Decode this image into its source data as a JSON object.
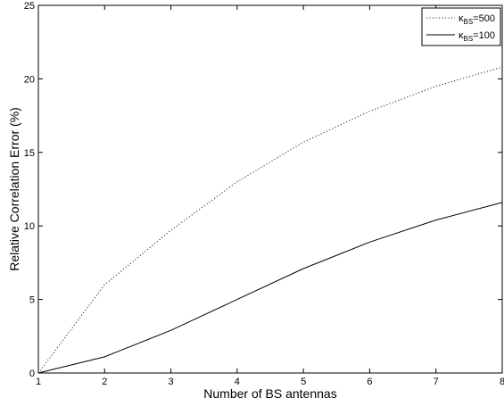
{
  "chart_data": {
    "type": "line",
    "xlabel": "Number of BS antennas",
    "ylabel": "Relative Correlation Error (%)",
    "xlim": [
      1,
      8
    ],
    "ylim": [
      0,
      25
    ],
    "xticks": [
      1,
      2,
      3,
      4,
      5,
      6,
      7,
      8
    ],
    "yticks": [
      0,
      5,
      10,
      15,
      20,
      25
    ],
    "grid": false,
    "legend_position": "top-right",
    "x": [
      1,
      2,
      3,
      4,
      5,
      6,
      7,
      8
    ],
    "series": [
      {
        "name": "κ_BS=500",
        "legend_symbol": "κ",
        "legend_subscript": "BS",
        "legend_value": "=500",
        "style": "dotted",
        "values": [
          0,
          6.0,
          9.7,
          13.0,
          15.7,
          17.8,
          19.5,
          20.8
        ]
      },
      {
        "name": "κ_BS=100",
        "legend_symbol": "κ",
        "legend_subscript": "BS",
        "legend_value": "=100",
        "style": "solid",
        "values": [
          0,
          1.1,
          2.9,
          5.0,
          7.1,
          8.9,
          10.4,
          11.6
        ]
      }
    ]
  }
}
